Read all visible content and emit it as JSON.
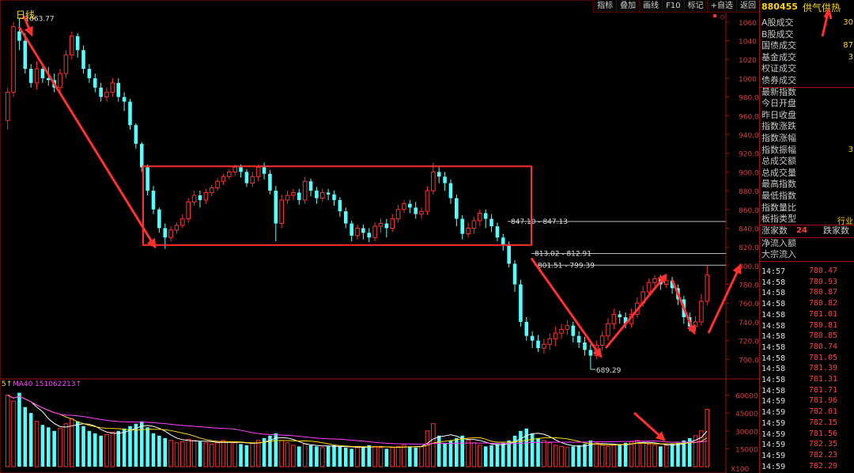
{
  "toolbar": [
    "指标",
    "叠加",
    "画线",
    "F10",
    "标记",
    "+自选",
    "返回"
  ],
  "period_label": "日线",
  "high_label": "1063.77",
  "low_label": "689.29",
  "ma_label": "MA40",
  "ma_value": "151062213",
  "volume_scale": "X100",
  "levels": [
    {
      "label": "847.10 - 847.13",
      "price": 847.1
    },
    {
      "label": "813.02 - 812.91",
      "price": 813
    },
    {
      "label": "801.51 - 799.39",
      "price": 800.5
    }
  ],
  "price_axis": [
    "1060",
    "1040",
    "1020",
    "1000",
    "980.0",
    "960.0",
    "940.0",
    "920.0",
    "900.0",
    "880.0",
    "860.0",
    "840.0",
    "820.0",
    "800.0",
    "780.0",
    "760.0",
    "740.0",
    "720.0",
    "700.0"
  ],
  "volume_axis": [
    "60000",
    "45000",
    "30000",
    "15000"
  ],
  "colors": {
    "up": "#ff3030",
    "down": "#54ffff",
    "ma": "#ff40ff",
    "yellow": "#ffd700",
    "annot": "#ff3030"
  },
  "chart_data": {
    "type": "candlestick",
    "candles": [
      [
        955,
        985,
        945,
        990
      ],
      [
        985,
        1055,
        980,
        1060
      ],
      [
        1050,
        1040,
        1030,
        1063.77
      ],
      [
        1040,
        1010,
        1005,
        1048
      ],
      [
        1010,
        995,
        990,
        1015
      ],
      [
        995,
        1010,
        988,
        1018
      ],
      [
        1010,
        1000,
        995,
        1015
      ],
      [
        1000,
        998,
        992,
        1012
      ],
      [
        998,
        990,
        985,
        1005
      ],
      [
        990,
        1005,
        985,
        1010
      ],
      [
        1005,
        1025,
        1000,
        1030
      ],
      [
        1025,
        1045,
        1020,
        1050
      ],
      [
        1045,
        1030,
        1022,
        1048
      ],
      [
        1030,
        1010,
        1005,
        1035
      ],
      [
        1010,
        1000,
        995,
        1015
      ],
      [
        1000,
        990,
        985,
        1005
      ],
      [
        990,
        980,
        975,
        995
      ],
      [
        980,
        985,
        975,
        990
      ],
      [
        985,
        995,
        980,
        1000
      ],
      [
        995,
        980,
        975,
        1000
      ],
      [
        980,
        975,
        965,
        985
      ],
      [
        975,
        950,
        945,
        978
      ],
      [
        950,
        930,
        925,
        952
      ],
      [
        930,
        905,
        900,
        932
      ],
      [
        905,
        880,
        875,
        908
      ],
      [
        880,
        860,
        855,
        885
      ],
      [
        860,
        840,
        835,
        862
      ],
      [
        840,
        830,
        818,
        845
      ],
      [
        830,
        838,
        826,
        842
      ],
      [
        838,
        843,
        834,
        846
      ],
      [
        843,
        850,
        840,
        855
      ],
      [
        850,
        868,
        846,
        872
      ],
      [
        868,
        875,
        864,
        880
      ],
      [
        875,
        870,
        862,
        880
      ],
      [
        870,
        878,
        866,
        882
      ],
      [
        878,
        883,
        874,
        886
      ],
      [
        883,
        890,
        880,
        893
      ],
      [
        890,
        895,
        886,
        898
      ],
      [
        895,
        900,
        892,
        903
      ],
      [
        900,
        905,
        896,
        908
      ],
      [
        905,
        900,
        894,
        908
      ],
      [
        900,
        888,
        884,
        903
      ],
      [
        888,
        895,
        884,
        900
      ],
      [
        895,
        905,
        890,
        908
      ],
      [
        905,
        898,
        892,
        910
      ],
      [
        898,
        880,
        876,
        902
      ],
      [
        880,
        845,
        826,
        885
      ],
      [
        845,
        870,
        840,
        876
      ],
      [
        870,
        875,
        866,
        880
      ],
      [
        875,
        878,
        870,
        882
      ],
      [
        878,
        870,
        865,
        882
      ],
      [
        870,
        890,
        866,
        895
      ],
      [
        890,
        880,
        874,
        893
      ],
      [
        880,
        872,
        866,
        884
      ],
      [
        872,
        878,
        868,
        882
      ],
      [
        878,
        876,
        870,
        882
      ],
      [
        876,
        870,
        864,
        880
      ],
      [
        870,
        858,
        852,
        873
      ],
      [
        858,
        845,
        840,
        862
      ],
      [
        845,
        832,
        826,
        848
      ],
      [
        832,
        840,
        828,
        844
      ],
      [
        840,
        835,
        828,
        844
      ],
      [
        835,
        830,
        825,
        840
      ],
      [
        830,
        842,
        826,
        846
      ],
      [
        842,
        845,
        835,
        850
      ],
      [
        845,
        840,
        830,
        850
      ],
      [
        840,
        850,
        836,
        855
      ],
      [
        850,
        860,
        846,
        865
      ],
      [
        860,
        866,
        856,
        870
      ],
      [
        866,
        862,
        856,
        870
      ],
      [
        862,
        855,
        850,
        868
      ],
      [
        855,
        858,
        850,
        862
      ],
      [
        858,
        880,
        854,
        885
      ],
      [
        880,
        900,
        876,
        910
      ],
      [
        900,
        895,
        888,
        905
      ],
      [
        895,
        888,
        880,
        900
      ],
      [
        888,
        872,
        866,
        892
      ],
      [
        872,
        850,
        842,
        876
      ],
      [
        850,
        834,
        828,
        854
      ],
      [
        834,
        840,
        830,
        846
      ],
      [
        840,
        848,
        834,
        852
      ],
      [
        848,
        856,
        842,
        860
      ],
      [
        856,
        850,
        840,
        860
      ],
      [
        850,
        842,
        836,
        855
      ],
      [
        842,
        830,
        826,
        846
      ],
      [
        830,
        822,
        816,
        834
      ],
      [
        822,
        802,
        798,
        826
      ],
      [
        802,
        780,
        772,
        806
      ],
      [
        780,
        740,
        735,
        785
      ],
      [
        740,
        725,
        720,
        745
      ],
      [
        725,
        720,
        712,
        730
      ],
      [
        720,
        712,
        708,
        726
      ],
      [
        712,
        716,
        706,
        722
      ],
      [
        716,
        722,
        710,
        728
      ],
      [
        722,
        728,
        714,
        735
      ],
      [
        728,
        732,
        722,
        738
      ],
      [
        732,
        736,
        726,
        742
      ],
      [
        736,
        725,
        718,
        740
      ],
      [
        725,
        718,
        712,
        730
      ],
      [
        718,
        710,
        704,
        724
      ],
      [
        710,
        704,
        689.29,
        716
      ],
      [
        704,
        715,
        700,
        720
      ],
      [
        715,
        725,
        710,
        730
      ],
      [
        725,
        738,
        720,
        744
      ],
      [
        738,
        748,
        732,
        754
      ],
      [
        748,
        745,
        738,
        752
      ],
      [
        745,
        738,
        733,
        750
      ],
      [
        738,
        748,
        734,
        754
      ],
      [
        748,
        760,
        744,
        766
      ],
      [
        760,
        772,
        756,
        778
      ],
      [
        772,
        782,
        768,
        786
      ],
      [
        782,
        786,
        778,
        790
      ],
      [
        786,
        780,
        774,
        790
      ],
      [
        780,
        784,
        776,
        788
      ],
      [
        784,
        776,
        770,
        788
      ],
      [
        776,
        764,
        758,
        780
      ],
      [
        764,
        745,
        738,
        768
      ],
      [
        745,
        735,
        730,
        750
      ],
      [
        735,
        740,
        730,
        746
      ],
      [
        740,
        762,
        736,
        770
      ],
      [
        762,
        790,
        758,
        800
      ]
    ],
    "volume": [
      60000,
      55000,
      62000,
      50000,
      45000,
      38000,
      35000,
      33000,
      30000,
      32000,
      36000,
      40000,
      38000,
      34000,
      30000,
      28000,
      26000,
      27000,
      29000,
      30000,
      32000,
      34000,
      36000,
      38000,
      33000,
      28000,
      26000,
      24000,
      22000,
      20000,
      21000,
      23000,
      22000,
      21000,
      20000,
      19000,
      20000,
      22000,
      21000,
      20000,
      19000,
      18000,
      20000,
      22000,
      24000,
      26000,
      28000,
      22000,
      20000,
      18000,
      17000,
      19000,
      18000,
      17000,
      16000,
      17000,
      18000,
      17000,
      16000,
      15000,
      16000,
      17000,
      18000,
      17000,
      16000,
      15000,
      16000,
      17000,
      18000,
      17000,
      16000,
      17000,
      30000,
      36000,
      26000,
      20000,
      22000,
      24000,
      26000,
      22000,
      20000,
      18000,
      17000,
      18000,
      19000,
      20000,
      22000,
      26000,
      30000,
      32000,
      28000,
      24000,
      22000,
      20000,
      18000,
      17000,
      16000,
      17000,
      18000,
      19000,
      22000,
      20000,
      18000,
      17000,
      18000,
      19000,
      20000,
      21000,
      22000,
      20000,
      19000,
      18000,
      17000,
      18000,
      19000,
      20000,
      22000,
      24000,
      26000,
      30000,
      48000
    ],
    "price_range": [
      680,
      1070
    ],
    "volume_range": [
      0,
      65000
    ]
  },
  "side_rows": [
    {
      "label": "A股成交",
      "value": "30"
    },
    {
      "label": "B股成交",
      "value": ""
    },
    {
      "label": "国债成交",
      "value": "87"
    },
    {
      "label": "基金成交",
      "value": "3"
    },
    {
      "label": "权证成交",
      "value": ""
    },
    {
      "label": "债券成交",
      "value": ""
    },
    {
      "label": "最新指数",
      "value": ""
    },
    {
      "label": "今日开盘",
      "value": ""
    },
    {
      "label": "昨日收盘",
      "value": ""
    },
    {
      "label": "指数涨跌",
      "value": ""
    },
    {
      "label": "指数涨幅",
      "value": ""
    },
    {
      "label": "指数振幅",
      "value": "3"
    },
    {
      "label": "总成交额",
      "value": ""
    },
    {
      "label": "总成交量",
      "value": ""
    },
    {
      "label": "最高指数",
      "value": ""
    },
    {
      "label": "最低指数",
      "value": ""
    },
    {
      "label": "指数量比",
      "value": ""
    },
    {
      "label": "板指类型",
      "value": "行业"
    }
  ],
  "side_code": "880455",
  "side_name": "供气供热",
  "rise_label": "涨家数",
  "rise_value": "24",
  "fall_label": "跌家数",
  "net_inflow_label": "净流入额",
  "block_inflow_label": "大宗流入",
  "ticks": [
    {
      "time": "14:57",
      "price": "780.47"
    },
    {
      "time": "14:58",
      "price": "780.93"
    },
    {
      "time": "14:58",
      "price": "780.87"
    },
    {
      "time": "14:58",
      "price": "780.82"
    },
    {
      "time": "14:58",
      "price": "781.01"
    },
    {
      "time": "14:58",
      "price": "780.81"
    },
    {
      "time": "14:58",
      "price": "780.85"
    },
    {
      "time": "14:58",
      "price": "780.74"
    },
    {
      "time": "14:58",
      "price": "781.05"
    },
    {
      "time": "14:58",
      "price": "781.39"
    },
    {
      "time": "14:58",
      "price": "781.31"
    },
    {
      "time": "14:58",
      "price": "781.71"
    },
    {
      "time": "14:59",
      "price": "781.96"
    },
    {
      "time": "14:59",
      "price": "782.01"
    },
    {
      "time": "14:59",
      "price": "782.15"
    },
    {
      "time": "14:59",
      "price": "781.56"
    },
    {
      "time": "14:59",
      "price": "782.35"
    },
    {
      "time": "14:59",
      "price": "782.23"
    },
    {
      "time": "14:59",
      "price": "782.29"
    }
  ]
}
